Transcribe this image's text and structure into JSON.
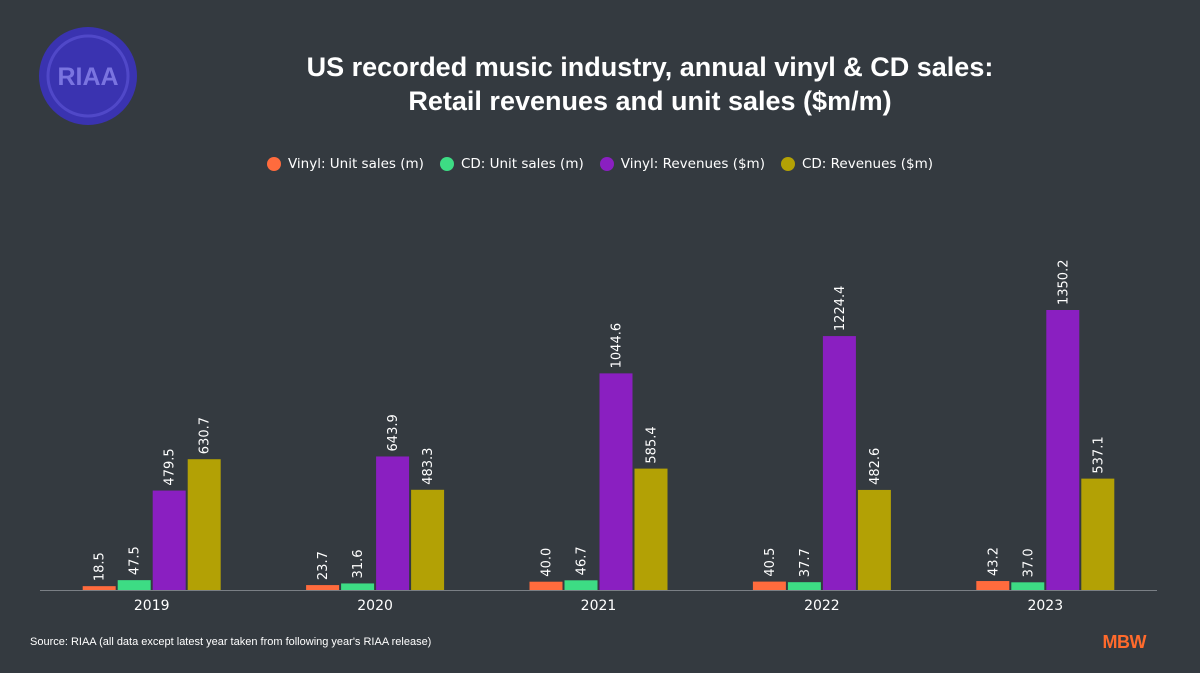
{
  "logo": {
    "text": "RIAA",
    "color": "#3333aa",
    "icon": "riaa-seal"
  },
  "title": {
    "line1": "US recorded music industry, annual vinyl & CD sales:",
    "line2": "Retail revenues and unit sales ($m/m)"
  },
  "source": "Source: RIAA (all data except latest year taken from following year's RIAA release)",
  "brand": "MBW",
  "chart_data": {
    "type": "bar",
    "categories": [
      "2019",
      "2020",
      "2021",
      "2022",
      "2023"
    ],
    "series": [
      {
        "name": "Vinyl: Unit sales (m)",
        "color": "#ff6b3d",
        "values": [
          18.5,
          23.7,
          40.0,
          40.5,
          43.2
        ],
        "labels": [
          "18.5",
          "23.7",
          "40.0",
          "40.5",
          "43.2"
        ]
      },
      {
        "name": "CD: Unit sales (m)",
        "color": "#3ddc84",
        "values": [
          47.5,
          31.6,
          46.7,
          37.7,
          37.0
        ],
        "labels": [
          "47.5",
          "31.6",
          "46.7",
          "37.7",
          "37.0"
        ]
      },
      {
        "name": "Vinyl: Revenues ($m)",
        "color": "#8a1fc1",
        "values": [
          479.5,
          643.9,
          1044.6,
          1224.4,
          1350.2
        ],
        "labels": [
          "479.5",
          "643.9",
          "1044.6",
          "1224.4",
          "1350.2"
        ]
      },
      {
        "name": "CD: Revenues ($m)",
        "color": "#b3a105",
        "values": [
          630.7,
          483.3,
          585.4,
          482.6,
          537.1
        ],
        "labels": [
          "630.7",
          "483.3",
          "585.4",
          "482.6",
          "537.1"
        ]
      }
    ],
    "ylim": [
      0,
      1350.2
    ],
    "legend_position": "top-center",
    "grid": false,
    "data_labels": "rotated-vertical"
  }
}
